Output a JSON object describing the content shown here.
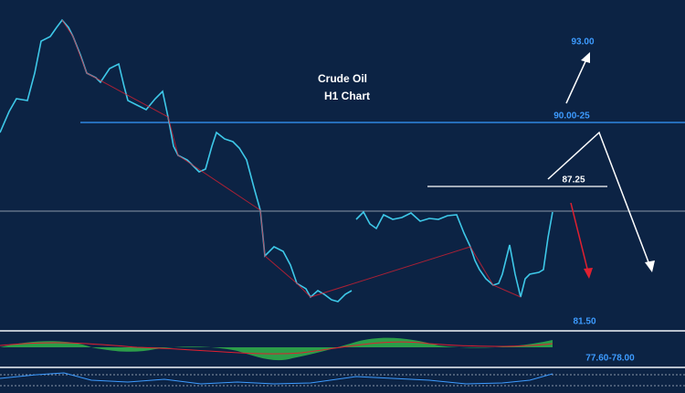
{
  "annotations": {
    "title": "Crude Oil",
    "subtitle": "H1 Chart",
    "target_high": "93.00",
    "resistance": "90.00-25",
    "level": "87.25",
    "support": "81.50",
    "support_low": "77.60-78.00"
  }
}
